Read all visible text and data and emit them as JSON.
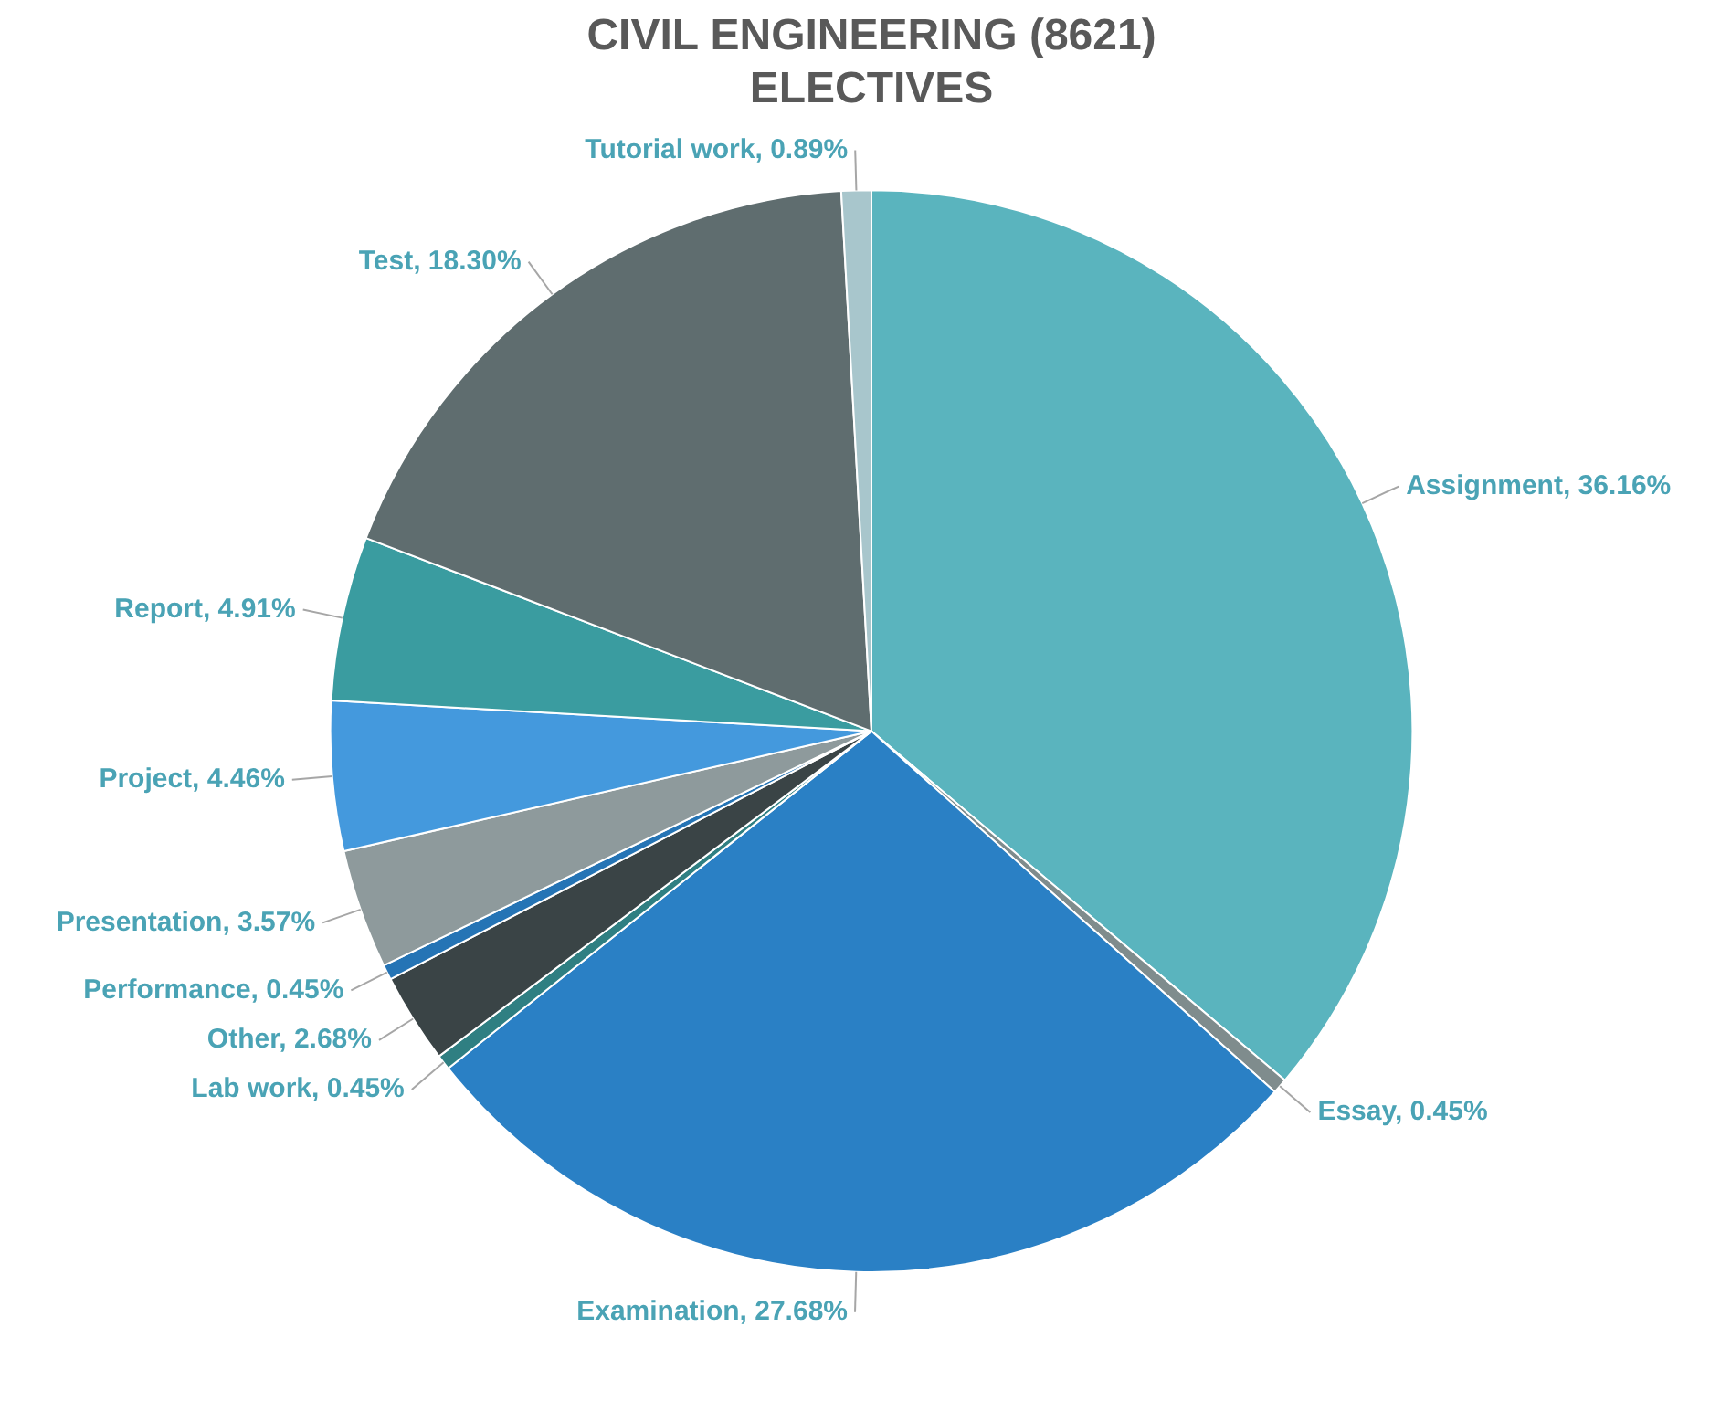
{
  "chart_data": {
    "type": "pie",
    "title": "CIVIL ENGINEERING (8621)\nELECTIVES",
    "categories": [
      "Assignment",
      "Essay",
      "Examination",
      "Lab work",
      "Other",
      "Performance",
      "Presentation",
      "Project",
      "Report",
      "Test",
      "Tutorial work"
    ],
    "values": [
      36.16,
      0.45,
      27.68,
      0.45,
      2.68,
      0.45,
      3.57,
      4.46,
      4.91,
      18.3,
      0.89
    ],
    "value_labels": [
      "36.16%",
      "0.45%",
      "27.68%",
      "0.45%",
      "2.68%",
      "0.45%",
      "3.57%",
      "4.46%",
      "4.91%",
      "18.30%",
      "0.89%"
    ],
    "colors": [
      "#5ab4be",
      "#7f8c8d",
      "#2a80c5",
      "#2f7f82",
      "#3a4446",
      "#2574b5",
      "#8e9a9c",
      "#4499dd",
      "#3a9ca0",
      "#5f6d6f",
      "#a8c6cc"
    ],
    "legend": false
  }
}
